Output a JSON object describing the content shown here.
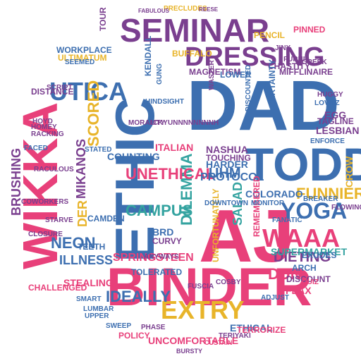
{
  "palette": {
    "pink": "#e8407a",
    "blue": "#3d6fb0",
    "purple": "#7a3f8f",
    "yellow": "#e8b42a",
    "teal": "#34a3a0",
    "green": "#7fb04a"
  },
  "words": [
    {
      "text": "ETHIC",
      "color": "blue"
    },
    {
      "text": "DAD",
      "color": "blue"
    },
    {
      "text": "WIKKA",
      "color": "pink"
    },
    {
      "text": "AJ",
      "color": "pink"
    },
    {
      "text": "BINDER",
      "color": "pink"
    },
    {
      "text": "TODD",
      "color": "blue"
    },
    {
      "text": "SEMINAR",
      "color": "purple"
    },
    {
      "text": "DRESSING",
      "color": "purple"
    },
    {
      "text": "UTICA",
      "color": "blue"
    },
    {
      "text": "EXTRY",
      "color": "yellow"
    },
    {
      "text": "YOGA",
      "color": "blue"
    },
    {
      "text": "WAAA",
      "color": "pink"
    },
    {
      "text": "MIKANOS",
      "color": "purple"
    },
    {
      "text": "SCORED",
      "color": "yellow"
    },
    {
      "text": "FUNNIER",
      "color": "yellow"
    },
    {
      "text": "CAMPUS",
      "color": "teal"
    },
    {
      "text": "DILEMMA",
      "color": "teal"
    },
    {
      "text": "UNETHICAL",
      "color": "pink"
    },
    {
      "text": "SPRINGSTEEN",
      "color": "pink"
    },
    {
      "text": "BRUSHING",
      "color": "purple"
    },
    {
      "text": "NEON",
      "color": "blue"
    },
    {
      "text": "ILLNESS",
      "color": "blue"
    },
    {
      "text": "DIETING",
      "color": "purple"
    },
    {
      "text": "IDEALLY",
      "color": "blue"
    },
    {
      "text": "DUN",
      "color": "pink"
    },
    {
      "text": "UHM",
      "color": "blue"
    },
    {
      "text": "HARDER",
      "color": "blue"
    },
    {
      "text": "PROTOCOL",
      "color": "blue"
    },
    {
      "text": "SALAD",
      "color": "teal"
    },
    {
      "text": "DER",
      "color": "yellow"
    },
    {
      "text": "STEALING",
      "color": "pink"
    },
    {
      "text": "SUPERMARKET",
      "color": "teal"
    },
    {
      "text": "UNCOMFORTABLE",
      "color": "pink"
    },
    {
      "text": "WORKPLACE",
      "color": "blue"
    },
    {
      "text": "ITALIAN",
      "color": "pink"
    },
    {
      "text": "COUNTING",
      "color": "blue"
    },
    {
      "text": "NASHUA",
      "color": "purple"
    },
    {
      "text": "TOUCHING",
      "color": "purple"
    },
    {
      "text": "COLORADO",
      "color": "blue"
    },
    {
      "text": "LESBIAN",
      "color": "purple"
    },
    {
      "text": "EGG",
      "color": "purple"
    },
    {
      "text": "FLAX",
      "color": "pink"
    },
    {
      "text": "POLICY",
      "color": "pink"
    },
    {
      "text": "ETHICAL",
      "color": "blue"
    },
    {
      "text": "CROW",
      "color": "yellow"
    },
    {
      "text": "REMEMBERED",
      "color": "pink"
    },
    {
      "text": "UNFORTUNATELY",
      "color": "yellow"
    },
    {
      "text": "DISTANCE",
      "color": "purple"
    },
    {
      "text": "KENDALL",
      "color": "blue"
    },
    {
      "text": "MAGNETISM",
      "color": "purple"
    },
    {
      "text": "MIFFLINAIRE",
      "color": "purple"
    },
    {
      "text": "CHASTITY",
      "color": "purple"
    },
    {
      "text": "LOWER",
      "color": "blue"
    },
    {
      "text": "BUFFALO",
      "color": "yellow"
    },
    {
      "text": "PENCIL",
      "color": "yellow"
    },
    {
      "text": "PINNED",
      "color": "pink"
    },
    {
      "text": "ULTIMATUM",
      "color": "yellow"
    },
    {
      "text": "HOMEY",
      "color": "purple"
    },
    {
      "text": "RACKING",
      "color": "purple"
    },
    {
      "text": "RACULOUS",
      "color": "purple"
    },
    {
      "text": "CAMDEN",
      "color": "blue"
    },
    {
      "text": "TEETH",
      "color": "blue"
    },
    {
      "text": "DISCOUNT",
      "color": "purple"
    },
    {
      "text": "DOWNTOWN",
      "color": "blue"
    },
    {
      "text": "DISCOUNTED",
      "color": "blue"
    },
    {
      "text": "ARCH",
      "color": "blue"
    },
    {
      "text": "EXUDES",
      "color": "blue"
    },
    {
      "text": "TERRORIZE",
      "color": "pink"
    },
    {
      "text": "FUSCIA",
      "color": "purple"
    },
    {
      "text": "CHALLENGED",
      "color": "pink"
    },
    {
      "text": "LUMBAR",
      "color": "blue"
    },
    {
      "text": "SMART",
      "color": "blue"
    },
    {
      "text": "TERIYAKI",
      "color": "purple"
    },
    {
      "text": "CERTAINTY",
      "color": "blue"
    },
    {
      "text": "ENFORCE",
      "color": "blue"
    },
    {
      "text": "TAGLINE",
      "color": "purple"
    },
    {
      "text": "HINDSIGHT",
      "color": "blue"
    },
    {
      "text": "FANATIC",
      "color": "blue"
    },
    {
      "text": "BRD",
      "color": "blue"
    },
    {
      "text": "CURVY",
      "color": "purple"
    },
    {
      "text": "TOLERATED",
      "color": "blue"
    },
    {
      "text": "TOUR",
      "color": "purple"
    },
    {
      "text": "BURSTY",
      "color": "purple"
    },
    {
      "text": "PRECLUDES",
      "color": "yellow"
    },
    {
      "text": "FABULOUS",
      "color": "purple"
    },
    {
      "text": "REESE",
      "color": "purple"
    },
    {
      "text": "GUNG",
      "color": "blue"
    },
    {
      "text": "SEEMED",
      "color": "blue"
    },
    {
      "text": "MORALITY",
      "color": "purple"
    },
    {
      "text": "ICKY",
      "color": "purple"
    },
    {
      "text": "UNNNNNNNNH",
      "color": "purple"
    },
    {
      "text": "HUGGY",
      "color": "purple"
    },
    {
      "text": "LOVITZ",
      "color": "blue"
    },
    {
      "text": "FLOWING",
      "color": "purple"
    },
    {
      "text": "QUIZ",
      "color": "pink"
    },
    {
      "text": "COSBY",
      "color": "purple"
    },
    {
      "text": "STATED",
      "color": "blue"
    },
    {
      "text": "WASTER",
      "color": "purple"
    },
    {
      "text": "JINX",
      "color": "purple"
    },
    {
      "text": "GREEK",
      "color": "purple"
    },
    {
      "text": "ADJUST",
      "color": "blue"
    },
    {
      "text": "SCRIPT",
      "color": "purple"
    },
    {
      "text": "STARVE",
      "color": "purple"
    },
    {
      "text": "CLOSURE",
      "color": "purple"
    },
    {
      "text": "COWORKERS",
      "color": "purple"
    },
    {
      "text": "FACED",
      "color": "blue"
    },
    {
      "text": "HOYD",
      "color": "purple"
    },
    {
      "text": "UPPER",
      "color": "blue"
    },
    {
      "text": "SWEEP",
      "color": "blue"
    },
    {
      "text": "CUSTAIN",
      "color": "pink"
    },
    {
      "text": "PHASE",
      "color": "purple"
    },
    {
      "text": "MONITOR",
      "color": "blue"
    },
    {
      "text": "BREAKER",
      "color": "blue"
    },
    {
      "text": "FURNI",
      "color": "purple"
    },
    {
      "text": "ANYWAYS",
      "color": "purple"
    }
  ]
}
